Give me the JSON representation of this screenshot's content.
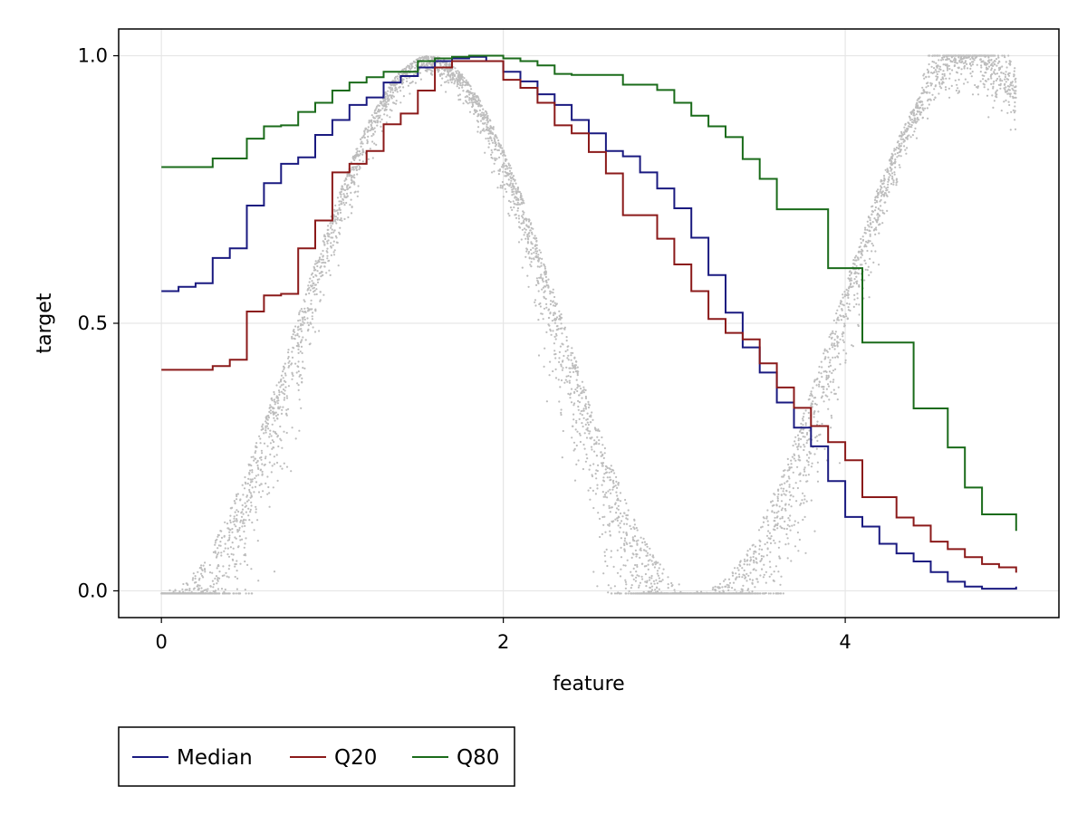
{
  "chart_data": {
    "type": "line",
    "title": "",
    "xlabel": "feature",
    "ylabel": "target",
    "xlim": [
      -0.25,
      5.25
    ],
    "ylim": [
      -0.05,
      1.05
    ],
    "xticks": [
      0,
      2,
      4
    ],
    "xtick_labels": [
      "0",
      "2",
      "4"
    ],
    "yticks": [
      0.0,
      0.5,
      1.0
    ],
    "ytick_labels": [
      "0.0",
      "0.5",
      "1.0"
    ],
    "grid": true,
    "legend_position": "bottom-left, outside plot",
    "scatter": {
      "name": "observations",
      "color": "#bdbdbd",
      "x_range": [
        0,
        5
      ],
      "approx_points": 5000
    },
    "steps_x": [
      0,
      0.1,
      0.2,
      0.3,
      0.4,
      0.5,
      0.6,
      0.7,
      0.8,
      0.9,
      1.0,
      1.1,
      1.2,
      1.3,
      1.4,
      1.5,
      1.6,
      1.7,
      1.8,
      1.9,
      2.0,
      2.1,
      2.2,
      2.3,
      2.4,
      2.5,
      2.6,
      2.7,
      2.8,
      2.9,
      3.0,
      3.1,
      3.2,
      3.3,
      3.4,
      3.5,
      3.6,
      3.7,
      3.8,
      3.9,
      4.0,
      4.1,
      4.2,
      4.3,
      4.4,
      4.5,
      4.6,
      4.7,
      4.8,
      4.9,
      5.0
    ],
    "series": [
      {
        "name": "Median",
        "color": "#1a1a80",
        "values": [
          0.56,
          0.568,
          0.575,
          0.622,
          0.64,
          0.72,
          0.762,
          0.798,
          0.81,
          0.852,
          0.88,
          0.908,
          0.922,
          0.95,
          0.962,
          0.978,
          0.99,
          0.995,
          0.998,
          0.99,
          0.97,
          0.952,
          0.928,
          0.908,
          0.88,
          0.855,
          0.822,
          0.812,
          0.782,
          0.752,
          0.715,
          0.66,
          0.59,
          0.52,
          0.455,
          0.408,
          0.352,
          0.305,
          0.27,
          0.205,
          0.138,
          0.12,
          0.088,
          0.07,
          0.055,
          0.035,
          0.017,
          0.008,
          0.004,
          0.004,
          0.008
        ]
      },
      {
        "name": "Q20",
        "color": "#8b1a1a",
        "values": [
          0.413,
          0.413,
          0.413,
          0.42,
          0.432,
          0.522,
          0.552,
          0.555,
          0.64,
          0.692,
          0.782,
          0.798,
          0.822,
          0.872,
          0.892,
          0.935,
          0.978,
          0.99,
          0.99,
          0.99,
          0.955,
          0.94,
          0.912,
          0.87,
          0.855,
          0.82,
          0.78,
          0.702,
          0.702,
          0.658,
          0.61,
          0.56,
          0.508,
          0.482,
          0.47,
          0.425,
          0.38,
          0.342,
          0.308,
          0.278,
          0.244,
          0.175,
          0.175,
          0.137,
          0.122,
          0.092,
          0.078,
          0.063,
          0.05,
          0.044,
          0.034
        ]
      },
      {
        "name": "Q80",
        "color": "#1a6b1a",
        "values": [
          0.792,
          0.792,
          0.792,
          0.808,
          0.808,
          0.845,
          0.868,
          0.87,
          0.895,
          0.912,
          0.935,
          0.95,
          0.96,
          0.97,
          0.97,
          0.99,
          0.995,
          0.998,
          1.0,
          1.0,
          0.995,
          0.99,
          0.982,
          0.966,
          0.964,
          0.964,
          0.964,
          0.946,
          0.946,
          0.936,
          0.912,
          0.888,
          0.868,
          0.848,
          0.807,
          0.77,
          0.713,
          0.713,
          0.713,
          0.603,
          0.603,
          0.464,
          0.464,
          0.464,
          0.341,
          0.341,
          0.268,
          0.193,
          0.143,
          0.143,
          0.112
        ]
      }
    ]
  }
}
